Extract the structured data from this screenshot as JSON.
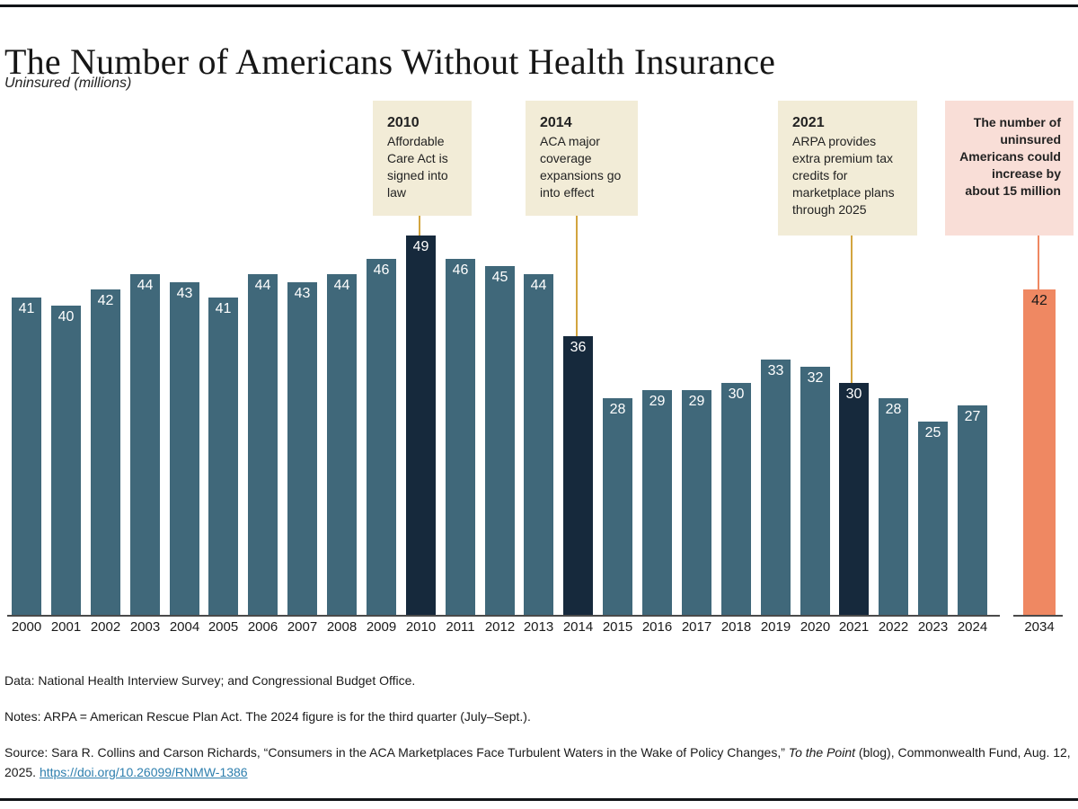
{
  "header": {
    "title": "The Number of Americans Without Health Insurance",
    "subtitle": "Uninsured (millions)"
  },
  "annotations": [
    {
      "year": "2010",
      "text": "Affordable Care Act is signed into law"
    },
    {
      "year": "2014",
      "text": "ACA major coverage expansions go into effect"
    },
    {
      "year": "2021",
      "text": "ARPA provides extra premium tax credits for marketplace plans through 2025"
    },
    {
      "year": "",
      "text": "The number of uninsured Americans could increase by about 15 million"
    }
  ],
  "chart_data": {
    "type": "bar",
    "title": "The Number of Americans Without Health Insurance",
    "ylabel": "Uninsured (millions)",
    "categories": [
      "2000",
      "2001",
      "2002",
      "2003",
      "2004",
      "2005",
      "2006",
      "2007",
      "2008",
      "2009",
      "2010",
      "2011",
      "2012",
      "2013",
      "2014",
      "2015",
      "2016",
      "2017",
      "2018",
      "2019",
      "2020",
      "2021",
      "2022",
      "2023",
      "2024",
      "2034"
    ],
    "values": [
      41,
      40,
      42,
      44,
      43,
      41,
      44,
      43,
      44,
      46,
      49,
      46,
      45,
      44,
      36,
      28,
      29,
      29,
      30,
      33,
      32,
      30,
      28,
      25,
      27,
      42
    ],
    "highlighted_categories": [
      "2010",
      "2014",
      "2021"
    ],
    "projection_category": "2034",
    "legend": "none",
    "grid": false,
    "ylim": [
      0,
      49
    ],
    "colors": {
      "bar": "#40687a",
      "highlight": "#16293c",
      "projection": "#ef8862",
      "annotation_box": "#f2ecd7",
      "projection_box": "#f9ded7",
      "connector_gold": "#d2a53f",
      "connector_salmon": "#ef8862"
    }
  },
  "footer": {
    "data_note": "Data: National Health Interview Survey; and Congressional Budget Office.",
    "notes": "Notes: ARPA = American Rescue Plan Act. The 2024 figure is for the third quarter (July–Sept.).",
    "source_prefix": "Source: Sara R. Collins and Carson Richards, “Consumers in the ACA Marketplaces Face Turbulent Waters in the Wake of Policy Changes,” ",
    "source_italic": "To the Point",
    "source_suffix": " (blog), Commonwealth Fund, Aug. 12, 2025. ",
    "source_link": "https://doi.org/10.26099/RNMW-1386"
  }
}
